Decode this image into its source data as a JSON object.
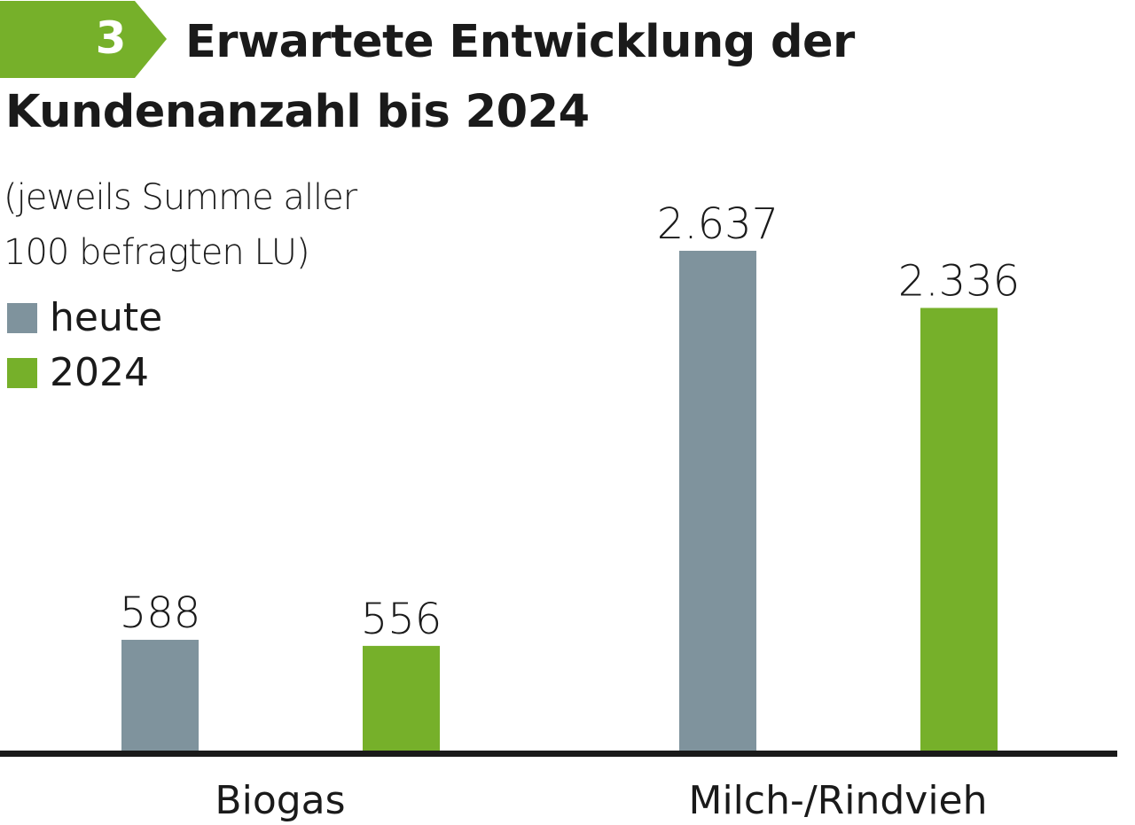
{
  "header": {
    "badge_number": "3",
    "title_line1": "Erwartete Entwicklung der",
    "title_line2": "Kundenanzahl bis 2024"
  },
  "subtitle_line1": "(jeweils Summe aller",
  "subtitle_line2": "100 befragten LU)",
  "colors": {
    "heute": "#7f939d",
    "2024": "#76b02a",
    "accent": "#76b02a"
  },
  "chart_data": {
    "type": "bar",
    "title": "Erwartete Entwicklung der Kundenanzahl bis 2024",
    "subtitle": "(jeweils Summe aller 100 befragten LU)",
    "categories": [
      "Biogas",
      "Milch-/Rindvieh"
    ],
    "series": [
      {
        "name": "heute",
        "values": [
          588,
          2637
        ],
        "labels": [
          "588",
          "2.637"
        ]
      },
      {
        "name": "2024",
        "values": [
          556,
          2336
        ],
        "labels": [
          "556",
          "2.336"
        ]
      }
    ],
    "legend": "top-left",
    "ylim": [
      0,
      2637
    ],
    "grid": false,
    "xlabel": "",
    "ylabel": ""
  }
}
